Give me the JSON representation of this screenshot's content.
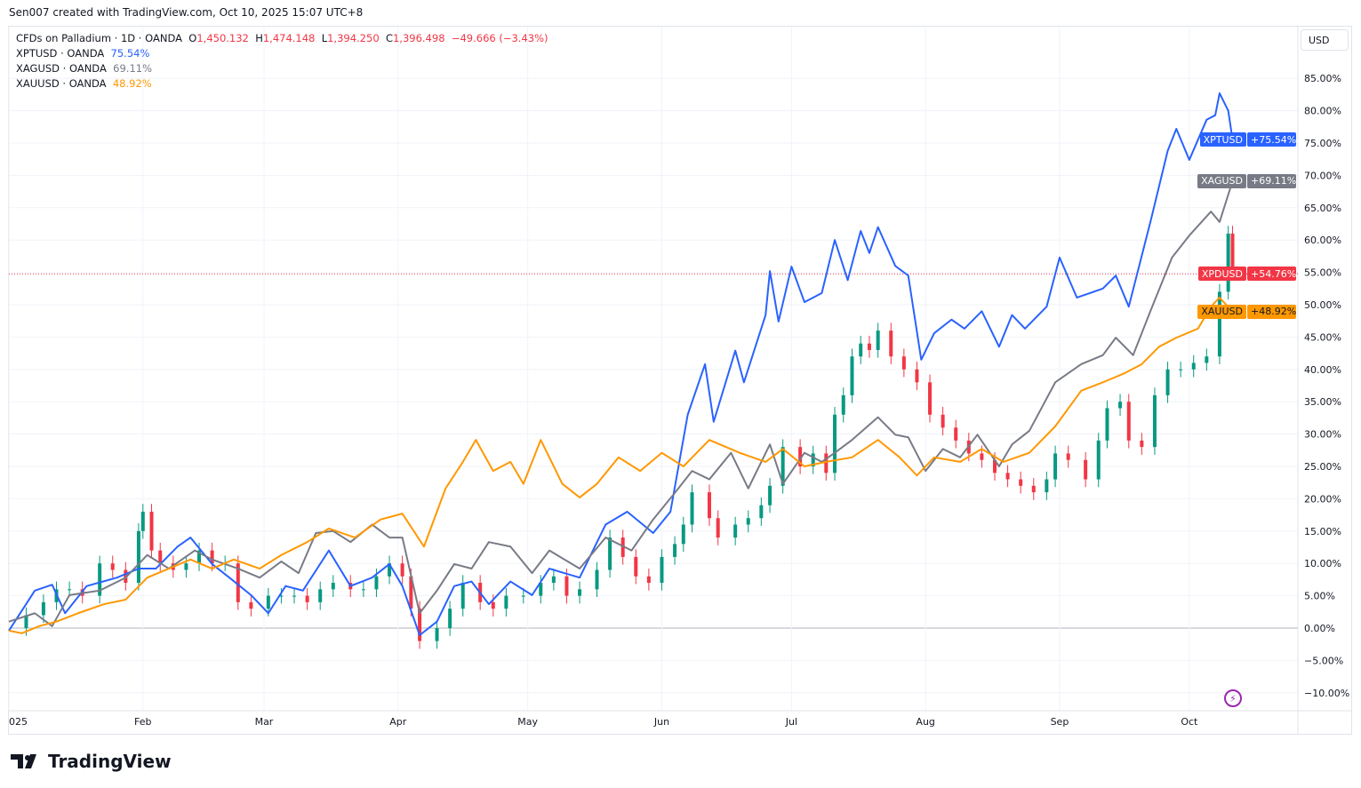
{
  "attribution": "Sen007 created with TradingView.com, Oct 10, 2025 15:07 UTC+8",
  "legend": {
    "main": {
      "title": "CFDs on Palladium · 1D · OANDA",
      "o_label": "O",
      "o": "1,450.132",
      "h_label": "H",
      "h": "1,474.148",
      "l_label": "L",
      "l": "1,394.250",
      "c_label": "C",
      "c": "1,396.498",
      "change": "−49.666 (−3.43%)"
    },
    "compare": [
      {
        "name": "XPTUSD · OANDA",
        "value": "75.54%"
      },
      {
        "name": "XAGUSD · OANDA",
        "value": "69.11%"
      },
      {
        "name": "XAUUSD · OANDA",
        "value": "48.92%"
      }
    ]
  },
  "currency_button": "USD",
  "brand": "TradingView",
  "tags": [
    {
      "symbol": "XPTUSD",
      "value": "+75.54%",
      "pct": 75.54,
      "color": "#2962ff"
    },
    {
      "symbol": "XAGUSD",
      "value": "+69.11%",
      "pct": 69.11,
      "color": "#787b86"
    },
    {
      "symbol": "XPDUSD",
      "value": "+54.76%",
      "pct": 54.76,
      "color": "#f23645"
    },
    {
      "symbol": "XAUUSD",
      "value": "+48.92%",
      "pct": 48.92,
      "color": "#ff9800",
      "textColor": "#131722"
    }
  ],
  "chart_data": {
    "type": "line",
    "title": "CFDs on Palladium · 1D · OANDA (percent scale) vs XPTUSD, XAGUSD, XAUUSD",
    "xlabel": "",
    "ylabel": "%",
    "x_unit": "days since Jan 1 2025",
    "x_ticks": [
      {
        "label": "025",
        "day": 0
      },
      {
        "label": "Feb",
        "day": 31
      },
      {
        "label": "Mar",
        "day": 59
      },
      {
        "label": "Apr",
        "day": 90
      },
      {
        "label": "May",
        "day": 120
      },
      {
        "label": "Jun",
        "day": 151
      },
      {
        "label": "Jul",
        "day": 181
      },
      {
        "label": "Aug",
        "day": 212
      },
      {
        "label": "Sep",
        "day": 243
      },
      {
        "label": "Oct",
        "day": 273
      }
    ],
    "y_ticks": [
      "85.00%",
      "80.00%",
      "75.00%",
      "70.00%",
      "65.00%",
      "60.00%",
      "55.00%",
      "50.00%",
      "45.00%",
      "40.00%",
      "35.00%",
      "30.00%",
      "25.00%",
      "20.00%",
      "15.00%",
      "10.00%",
      "5.00%",
      "0.00%",
      "−5.00%",
      "−10.00%"
    ],
    "y_tick_values": [
      85,
      80,
      75,
      70,
      65,
      60,
      55,
      50,
      45,
      40,
      35,
      30,
      25,
      20,
      15,
      10,
      5,
      0,
      -5,
      -10
    ],
    "ylim": [
      -12,
      92
    ],
    "grid": true,
    "last_price_pct": 54.76,
    "candles_close": {
      "name": "XPDUSD",
      "up_color": "#089981",
      "down_color": "#f23645",
      "points": [
        [
          0,
          0
        ],
        [
          4,
          2
        ],
        [
          8,
          4
        ],
        [
          11,
          6
        ],
        [
          14,
          6
        ],
        [
          17,
          5
        ],
        [
          21,
          10
        ],
        [
          24,
          9
        ],
        [
          27,
          7
        ],
        [
          30,
          15
        ],
        [
          31,
          18
        ],
        [
          33,
          12
        ],
        [
          35,
          10
        ],
        [
          38,
          9
        ],
        [
          41,
          10
        ],
        [
          44,
          12
        ],
        [
          47,
          10
        ],
        [
          50,
          10
        ],
        [
          53,
          4
        ],
        [
          56,
          3
        ],
        [
          60,
          5
        ],
        [
          63,
          5
        ],
        [
          66,
          5
        ],
        [
          69,
          4
        ],
        [
          72,
          6
        ],
        [
          75,
          7
        ],
        [
          79,
          6
        ],
        [
          82,
          6
        ],
        [
          85,
          8
        ],
        [
          88,
          10
        ],
        [
          91,
          8
        ],
        [
          93,
          3
        ],
        [
          95,
          -2
        ],
        [
          99,
          0
        ],
        [
          102,
          3
        ],
        [
          105,
          7
        ],
        [
          109,
          4
        ],
        [
          112,
          3
        ],
        [
          115,
          5
        ],
        [
          119,
          5
        ],
        [
          123,
          7
        ],
        [
          126,
          8
        ],
        [
          129,
          5
        ],
        [
          132,
          6
        ],
        [
          136,
          9
        ],
        [
          139,
          14
        ],
        [
          142,
          11
        ],
        [
          145,
          8
        ],
        [
          148,
          7
        ],
        [
          151,
          11
        ],
        [
          154,
          13
        ],
        [
          156,
          16
        ],
        [
          158,
          21
        ],
        [
          162,
          17
        ],
        [
          164,
          14
        ],
        [
          168,
          16
        ],
        [
          171,
          17
        ],
        [
          174,
          19
        ],
        [
          176,
          22
        ],
        [
          179,
          28
        ],
        [
          183,
          25
        ],
        [
          186,
          27
        ],
        [
          189,
          24
        ],
        [
          191,
          33
        ],
        [
          193,
          36
        ],
        [
          195,
          42
        ],
        [
          197,
          44
        ],
        [
          199,
          43
        ],
        [
          201,
          46
        ],
        [
          204,
          42
        ],
        [
          207,
          40
        ],
        [
          210,
          38
        ],
        [
          213,
          33
        ],
        [
          216,
          31
        ],
        [
          219,
          29
        ],
        [
          222,
          27
        ],
        [
          225,
          26
        ],
        [
          228,
          24
        ],
        [
          231,
          23
        ],
        [
          234,
          22
        ],
        [
          237,
          21
        ],
        [
          240,
          23
        ],
        [
          242,
          27
        ],
        [
          245,
          26
        ],
        [
          249,
          23
        ],
        [
          252,
          29
        ],
        [
          254,
          34
        ],
        [
          257,
          35
        ],
        [
          259,
          29
        ],
        [
          262,
          28
        ],
        [
          265,
          36
        ],
        [
          268,
          40
        ],
        [
          271,
          40
        ],
        [
          274,
          41
        ],
        [
          277,
          42
        ],
        [
          280,
          52
        ],
        [
          282,
          61
        ],
        [
          283,
          55
        ]
      ]
    },
    "series": [
      {
        "name": "XPTUSD",
        "color": "#2962ff",
        "points": [
          [
            0,
            -0.4
          ],
          [
            6,
            5.8
          ],
          [
            10,
            6.7
          ],
          [
            13,
            2.3
          ],
          [
            18,
            6.5
          ],
          [
            25,
            7.8
          ],
          [
            30,
            9.2
          ],
          [
            34,
            9.2
          ],
          [
            39,
            12.6
          ],
          [
            42,
            14
          ],
          [
            47,
            9.9
          ],
          [
            51,
            7.8
          ],
          [
            56,
            5.1
          ],
          [
            60,
            2.3
          ],
          [
            64,
            6.5
          ],
          [
            68,
            5.8
          ],
          [
            74,
            12
          ],
          [
            79,
            6.5
          ],
          [
            84,
            7.8
          ],
          [
            88,
            9.9
          ],
          [
            91,
            6.5
          ],
          [
            95,
            -1.1
          ],
          [
            99,
            1
          ],
          [
            103,
            6.5
          ],
          [
            107,
            7.2
          ],
          [
            111,
            3.7
          ],
          [
            116,
            7.2
          ],
          [
            121,
            5.1
          ],
          [
            125,
            9.2
          ],
          [
            132,
            7.8
          ],
          [
            138,
            16
          ],
          [
            143,
            18
          ],
          [
            149,
            14.7
          ],
          [
            153,
            18
          ],
          [
            157,
            33
          ],
          [
            161,
            40.8
          ],
          [
            163,
            31.9
          ],
          [
            168,
            42.9
          ],
          [
            170,
            38
          ],
          [
            175,
            48.4
          ],
          [
            176,
            55.2
          ],
          [
            178,
            47.4
          ],
          [
            181,
            55.9
          ],
          [
            184,
            50.4
          ],
          [
            188,
            51.8
          ],
          [
            191,
            60
          ],
          [
            194,
            53.8
          ],
          [
            197,
            61.4
          ],
          [
            199,
            58
          ],
          [
            201,
            62
          ],
          [
            205,
            56
          ],
          [
            208,
            54.5
          ],
          [
            211,
            41.5
          ],
          [
            214,
            45.6
          ],
          [
            218,
            47.7
          ],
          [
            221,
            46.3
          ],
          [
            225,
            49
          ],
          [
            229,
            43.5
          ],
          [
            232,
            48.4
          ],
          [
            235,
            46.3
          ],
          [
            240,
            49.7
          ],
          [
            243,
            57.3
          ],
          [
            247,
            51.1
          ],
          [
            250,
            51.8
          ],
          [
            253,
            52.5
          ],
          [
            256,
            54.5
          ],
          [
            259,
            49.7
          ],
          [
            264,
            62.8
          ],
          [
            268,
            73.8
          ],
          [
            270,
            77.2
          ],
          [
            273,
            72.4
          ],
          [
            277,
            78.6
          ],
          [
            279,
            79.3
          ],
          [
            280,
            82.7
          ],
          [
            282,
            80
          ],
          [
            283,
            75.54
          ]
        ]
      },
      {
        "name": "XAGUSD",
        "color": "#787b86",
        "points": [
          [
            0,
            1
          ],
          [
            6,
            2.3
          ],
          [
            10,
            0.3
          ],
          [
            14,
            5.1
          ],
          [
            21,
            5.8
          ],
          [
            27,
            7.8
          ],
          [
            32,
            11.3
          ],
          [
            37,
            9.2
          ],
          [
            43,
            12
          ],
          [
            47,
            10.6
          ],
          [
            53,
            9.2
          ],
          [
            58,
            7.8
          ],
          [
            63,
            10.3
          ],
          [
            67,
            8.5
          ],
          [
            71,
            14.7
          ],
          [
            75,
            15
          ],
          [
            79,
            13.3
          ],
          [
            84,
            16
          ],
          [
            88,
            14
          ],
          [
            91,
            14
          ],
          [
            95,
            2.3
          ],
          [
            99,
            5.8
          ],
          [
            103,
            9.9
          ],
          [
            107,
            9.2
          ],
          [
            111,
            13.3
          ],
          [
            116,
            12.6
          ],
          [
            121,
            8.5
          ],
          [
            125,
            12
          ],
          [
            132,
            9.2
          ],
          [
            138,
            14
          ],
          [
            144,
            12
          ],
          [
            149,
            16.8
          ],
          [
            154,
            20.9
          ],
          [
            158,
            24.3
          ],
          [
            162,
            23
          ],
          [
            167,
            27.1
          ],
          [
            171,
            21.6
          ],
          [
            176,
            28.4
          ],
          [
            179,
            22.3
          ],
          [
            184,
            27.1
          ],
          [
            188,
            25.7
          ],
          [
            191,
            27.1
          ],
          [
            195,
            29.1
          ],
          [
            201,
            32.6
          ],
          [
            205,
            29.9
          ],
          [
            208,
            29.5
          ],
          [
            212,
            24.3
          ],
          [
            216,
            27.7
          ],
          [
            220,
            26.4
          ],
          [
            224,
            29.9
          ],
          [
            229,
            25
          ],
          [
            232,
            28.4
          ],
          [
            236,
            30.5
          ],
          [
            242,
            38
          ],
          [
            248,
            40.8
          ],
          [
            253,
            42.2
          ],
          [
            256,
            44.9
          ],
          [
            260,
            42.2
          ],
          [
            264,
            49
          ],
          [
            269,
            57.3
          ],
          [
            273,
            60.7
          ],
          [
            278,
            64.4
          ],
          [
            280,
            62.8
          ],
          [
            283,
            69.11
          ]
        ]
      },
      {
        "name": "XAUUSD",
        "color": "#ff9800",
        "points": [
          [
            0,
            -0.4
          ],
          [
            3,
            -0.8
          ],
          [
            7,
            0.3
          ],
          [
            11,
            1
          ],
          [
            16,
            2.3
          ],
          [
            22,
            3.7
          ],
          [
            27,
            4.4
          ],
          [
            32,
            7.8
          ],
          [
            37,
            9.2
          ],
          [
            42,
            10.6
          ],
          [
            47,
            9.2
          ],
          [
            52,
            10.6
          ],
          [
            58,
            9.2
          ],
          [
            63,
            11.3
          ],
          [
            69,
            13.3
          ],
          [
            74,
            15.4
          ],
          [
            80,
            14
          ],
          [
            86,
            16.8
          ],
          [
            91,
            17.7
          ],
          [
            96,
            12.6
          ],
          [
            101,
            21.6
          ],
          [
            105,
            25.7
          ],
          [
            108,
            29.1
          ],
          [
            112,
            24.3
          ],
          [
            116,
            25.7
          ],
          [
            119,
            22.3
          ],
          [
            123,
            29.1
          ],
          [
            128,
            22.3
          ],
          [
            132,
            20.2
          ],
          [
            136,
            22.3
          ],
          [
            141,
            26.4
          ],
          [
            146,
            24.3
          ],
          [
            151,
            27.1
          ],
          [
            156,
            25
          ],
          [
            162,
            29.1
          ],
          [
            169,
            27.1
          ],
          [
            175,
            25.7
          ],
          [
            179,
            27.7
          ],
          [
            184,
            25
          ],
          [
            189,
            25.7
          ],
          [
            195,
            26.4
          ],
          [
            201,
            29.1
          ],
          [
            206,
            26.4
          ],
          [
            210,
            23.6
          ],
          [
            214,
            26.4
          ],
          [
            220,
            25.7
          ],
          [
            225,
            27.7
          ],
          [
            230,
            25.7
          ],
          [
            236,
            27.1
          ],
          [
            242,
            31.2
          ],
          [
            248,
            36.7
          ],
          [
            253,
            38
          ],
          [
            258,
            39.4
          ],
          [
            262,
            40.8
          ],
          [
            266,
            43.5
          ],
          [
            270,
            44.9
          ],
          [
            275,
            46.3
          ],
          [
            278,
            49.7
          ],
          [
            280,
            51.1
          ],
          [
            283,
            48.92
          ]
        ]
      }
    ]
  }
}
